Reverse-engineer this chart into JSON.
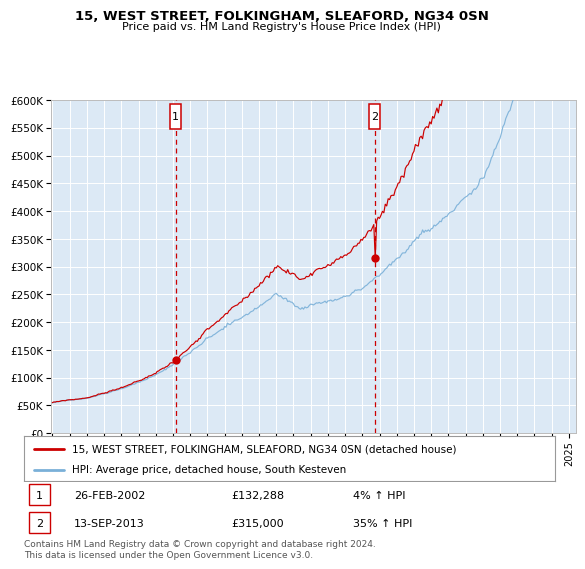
{
  "title1": "15, WEST STREET, FOLKINGHAM, SLEAFORD, NG34 0SN",
  "title2": "Price paid vs. HM Land Registry's House Price Index (HPI)",
  "legend_line1": "15, WEST STREET, FOLKINGHAM, SLEAFORD, NG34 0SN (detached house)",
  "legend_line2": "HPI: Average price, detached house, South Kesteven",
  "annotation1_year": 2002.15,
  "annotation1_value": 132288,
  "annotation2_year": 2013.71,
  "annotation2_value": 315000,
  "ylim_min": 0,
  "ylim_max": 600000,
  "bg_color": "#dce9f5",
  "outer_bg": "#ffffff",
  "hpi_color": "#7ab0d8",
  "price_color": "#cc0000",
  "dashed_color": "#cc0000",
  "grid_color": "#ffffff",
  "footer_text": "Contains HM Land Registry data © Crown copyright and database right 2024.\nThis data is licensed under the Open Government Licence v3.0."
}
